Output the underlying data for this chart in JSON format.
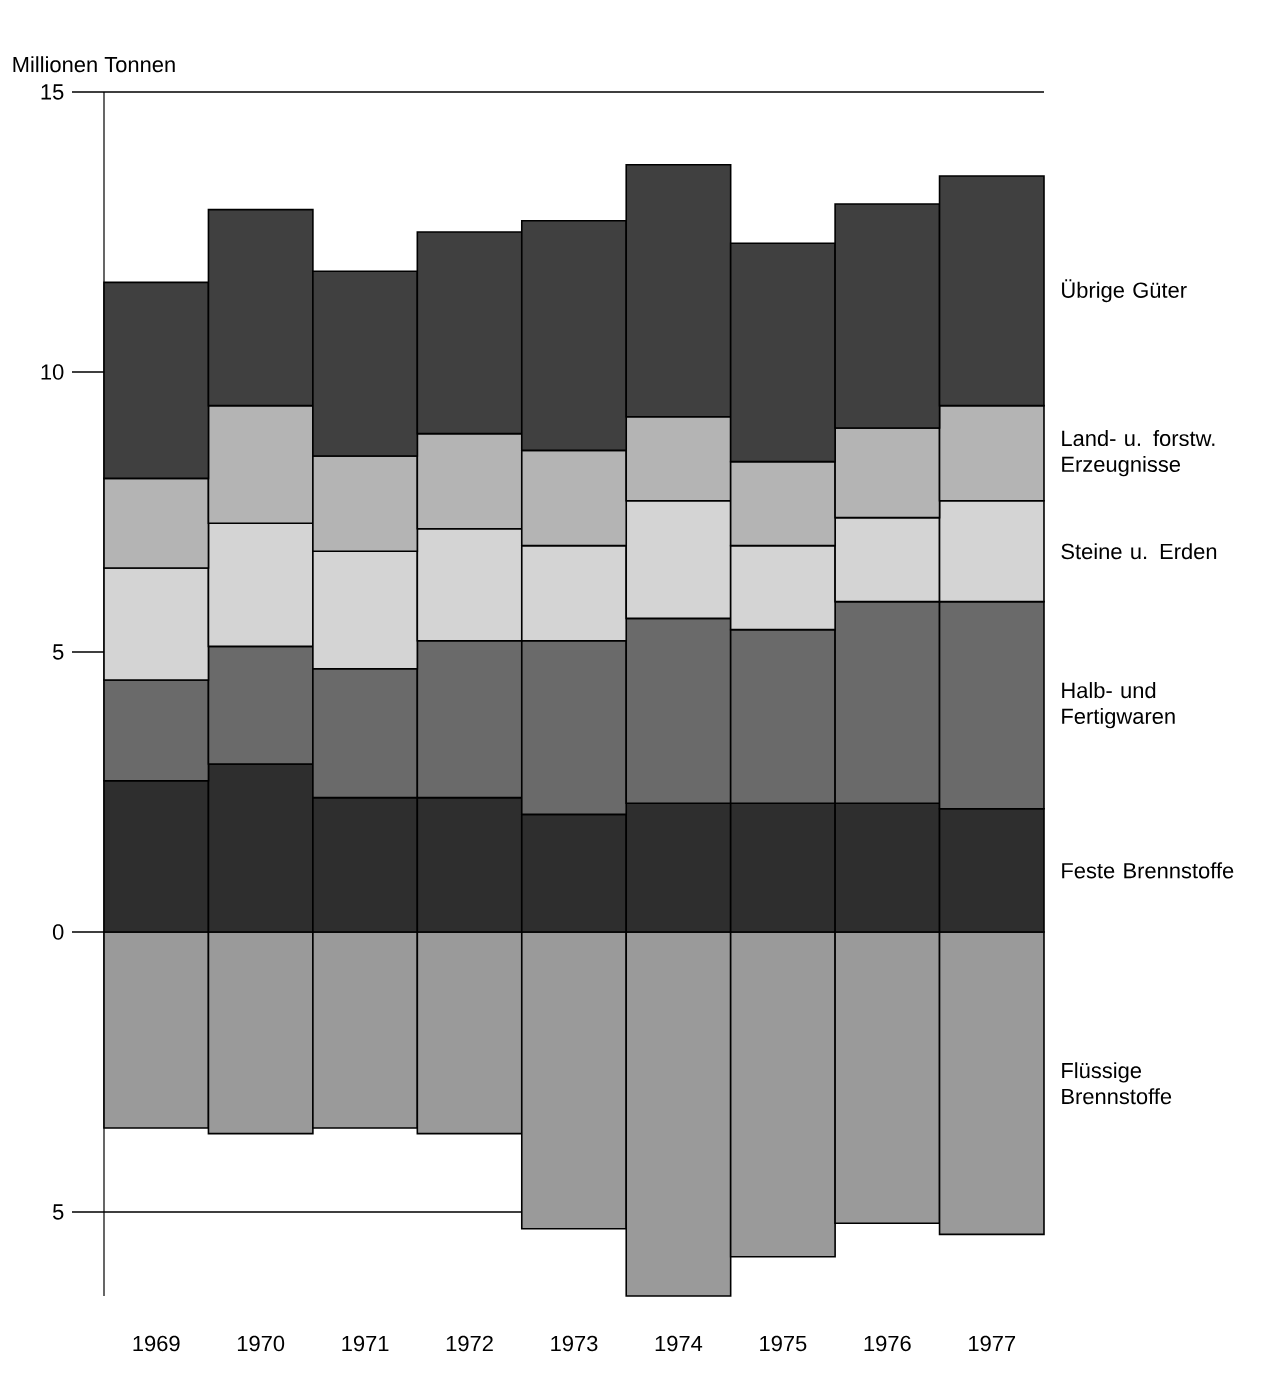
{
  "chart_data": {
    "type": "bar",
    "stacked": true,
    "ylabel": "Millionen Tonnen",
    "categories": [
      "1969",
      "1970",
      "1971",
      "1972",
      "1973",
      "1974",
      "1975",
      "1976",
      "1977"
    ],
    "series": [
      {
        "name": "Flüssige Brennstoffe",
        "color": "#9a9a9a",
        "values": [
          -3.5,
          -3.6,
          -3.5,
          -3.6,
          -5.3,
          -6.5,
          -5.8,
          -5.2,
          -5.4
        ]
      },
      {
        "name": "Feste Brennstoffe",
        "color": "#2e2e2e",
        "values": [
          2.7,
          3.0,
          2.4,
          2.4,
          2.1,
          2.3,
          2.3,
          2.3,
          2.2
        ]
      },
      {
        "name": "Halb- und Fertigwaren",
        "color": "#6a6a6a",
        "values": [
          1.8,
          2.1,
          2.3,
          2.8,
          3.1,
          3.3,
          3.1,
          3.6,
          3.7
        ]
      },
      {
        "name": "Steine u. Erden",
        "color": "#d4d4d4",
        "values": [
          2.0,
          2.2,
          2.1,
          2.0,
          1.7,
          2.1,
          1.5,
          1.5,
          1.8
        ]
      },
      {
        "name": "Land- u. forstw. Erzeugnisse",
        "color": "#b4b4b4",
        "values": [
          1.6,
          2.1,
          1.7,
          1.7,
          1.7,
          1.5,
          1.5,
          1.6,
          1.7
        ]
      },
      {
        "name": "Übrige Güter",
        "color": "#404040",
        "values": [
          3.5,
          3.5,
          3.3,
          3.6,
          4.1,
          4.5,
          3.9,
          4.0,
          4.1
        ]
      }
    ],
    "ylim": [
      -6.5,
      15
    ],
    "yticks": [
      15,
      10,
      5,
      0,
      {
        "value": -5,
        "label": "5"
      }
    ],
    "grid": "y"
  }
}
